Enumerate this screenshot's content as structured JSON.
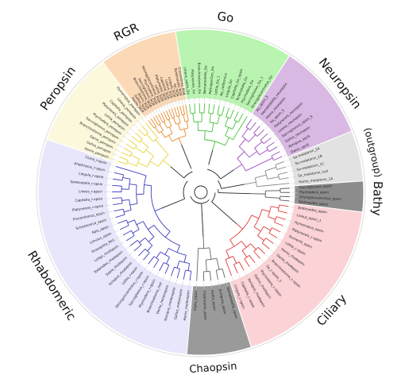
{
  "clades": [
    {
      "key": "go",
      "label": "Go",
      "fill": "#b9f5b0",
      "branch": "#44c23a"
    },
    {
      "key": "neuropsin",
      "label": "Neuropsin",
      "fill": "#d9b8e3",
      "branch": "#9b4fbf"
    },
    {
      "key": "outgroup",
      "label": "(outgroup)",
      "fill": "#e2e2e2",
      "branch": "#888888"
    },
    {
      "key": "bathy",
      "label": "Bathy",
      "fill": "#8c8c8c",
      "branch": "#555555"
    },
    {
      "key": "ciliary",
      "label": "Ciliary",
      "fill": "#fbd2d6",
      "branch": "#e23b3b"
    },
    {
      "key": "chaopsin",
      "label": "Chaopsin",
      "fill": "#9a9a9a",
      "branch": "#666666"
    },
    {
      "key": "rhabdomeric",
      "label": "Rhabdomeric",
      "fill": "#e7e6fb",
      "branch": "#3b3fbf"
    },
    {
      "key": "peropsin",
      "label": "Peropsin",
      "fill": "#fbf8dc",
      "branch": "#e8d33a"
    },
    {
      "key": "rgr",
      "label": "RGR",
      "fill": "#fcd9b6",
      "branch": "#e88b2e"
    }
  ],
  "tips": {
    "go": [
      "Lineus_opsin_Go",
      "Platynereis_Go",
      "Branchiostoma_Go",
      "Nematostella_Go",
      "Patinopecten_Go",
      "Lottia_Go_1",
      "Ap_californica",
      "Lingula_Go",
      "Capitella_Go_opsin",
      "Terebratalia_Go",
      "Ptychodera_Go",
      "Saccoglossus_Go_1",
      "Strongylocentrotus_Go"
    ],
    "neuropsin": [
      "Ap_opsin_5",
      "Nematostella_neuropsin",
      "Homo_neuropsin",
      "Sa_opsin_5",
      "Platynereis_neuropsin",
      "Lineus_neuropsin",
      "Saccoglossus_opsin_5",
      "Gallus_neuropsin",
      "Xenopus_opn5",
      "Danio_opn5"
    ],
    "outgroup": [
      "Sa-melatonin_1A",
      "Sa-melatonin_1B",
      "Sa-melatonin_1C",
      "Sa_melatonin_rcpt",
      "Homo_melatonin_1A"
    ],
    "bathy": [
      "Saccoglossus_opsin",
      "Ptychodera_opsin",
      "Strongylocentrotus_opsin",
      "Embryodes_opsin"
    ],
    "ciliary": [
      "Embryodes_opsin",
      "Lineus_opsin_1",
      "Hymenopus_opsin",
      "Platynereis_c-opsin",
      "Dumerilii_opsin",
      "Lottia_c-opsin",
      "Homo_rhodopsin",
      "Danio_rhodopsin",
      "Branchiostoma_c-opsin",
      "Sa_c-opsin_1",
      "Ptychodera_c-opsin",
      "Gallus_rhodopsin",
      "Xenopus_rhodopsin",
      "Capitella_c-opsin",
      "Lingula_c-opsin"
    ],
    "chaopsin": [
      "Nematostella_opsin",
      "Acropora_opsin",
      "Hydra_opsin",
      "Cladonema_opsin",
      "Clytia_opsin"
    ],
    "rhabdomeric": [
      "Homo_melanopsin",
      "Gallus_melanopsin",
      "Xenopus_melanopsin",
      "Danio_melanopsin",
      "Branchiostoma_mel",
      "Ptychodera_r-opsin",
      "Saccoglossus_r-opsin",
      "Strongylocentrotus_r-opsin",
      "Lottia_r-opsin",
      "Octopus_rhodopsin",
      "Sepia_rhodopsin",
      "Todarodes_rhodopsin",
      "Loligo_rhodopsin",
      "Drosophila_Rh1",
      "Limulus_opsin",
      "Apis_opsin",
      "Schistocerca_opsin",
      "Procambarus_opsin",
      "Platynereis_r-opsin",
      "Capitella_r-opsin",
      "Lineus_r-opsin",
      "Terebratalia_r-opsin",
      "Lingula_r-opsin",
      "Amphioxus_r-opsin",
      "Ciona_r-opsin"
    ],
    "peropsin": [
      "Homo_peropsin",
      "Gallus_peropsin",
      "Danio_peropsin",
      "Branchiostoma_peropsin",
      "Saccoglossus_peropsin",
      "Ptychodera_peropsin",
      "Lottia_peropsin",
      "Platynereis_peropsin",
      "Capitella_peropsin",
      "Lineus_peropsin",
      "Hymenopus_peropsin"
    ],
    "rgr": [
      "Homo_RGR",
      "Gallus_RGR",
      "Danio_RGR",
      "Branchiostoma_RGR",
      "Saccoglossus_RGR",
      "Ptychodera_RGR",
      "Strongylocentrotus_RGR",
      "Lottia_RGR",
      "Platynereis_RGR",
      "Capitella_RGR",
      "Lineus_RGR",
      "Lingula_RGR",
      "Ap_RGR",
      "Terebratalia_RGR",
      "Crassostrea_RGR"
    ]
  }
}
